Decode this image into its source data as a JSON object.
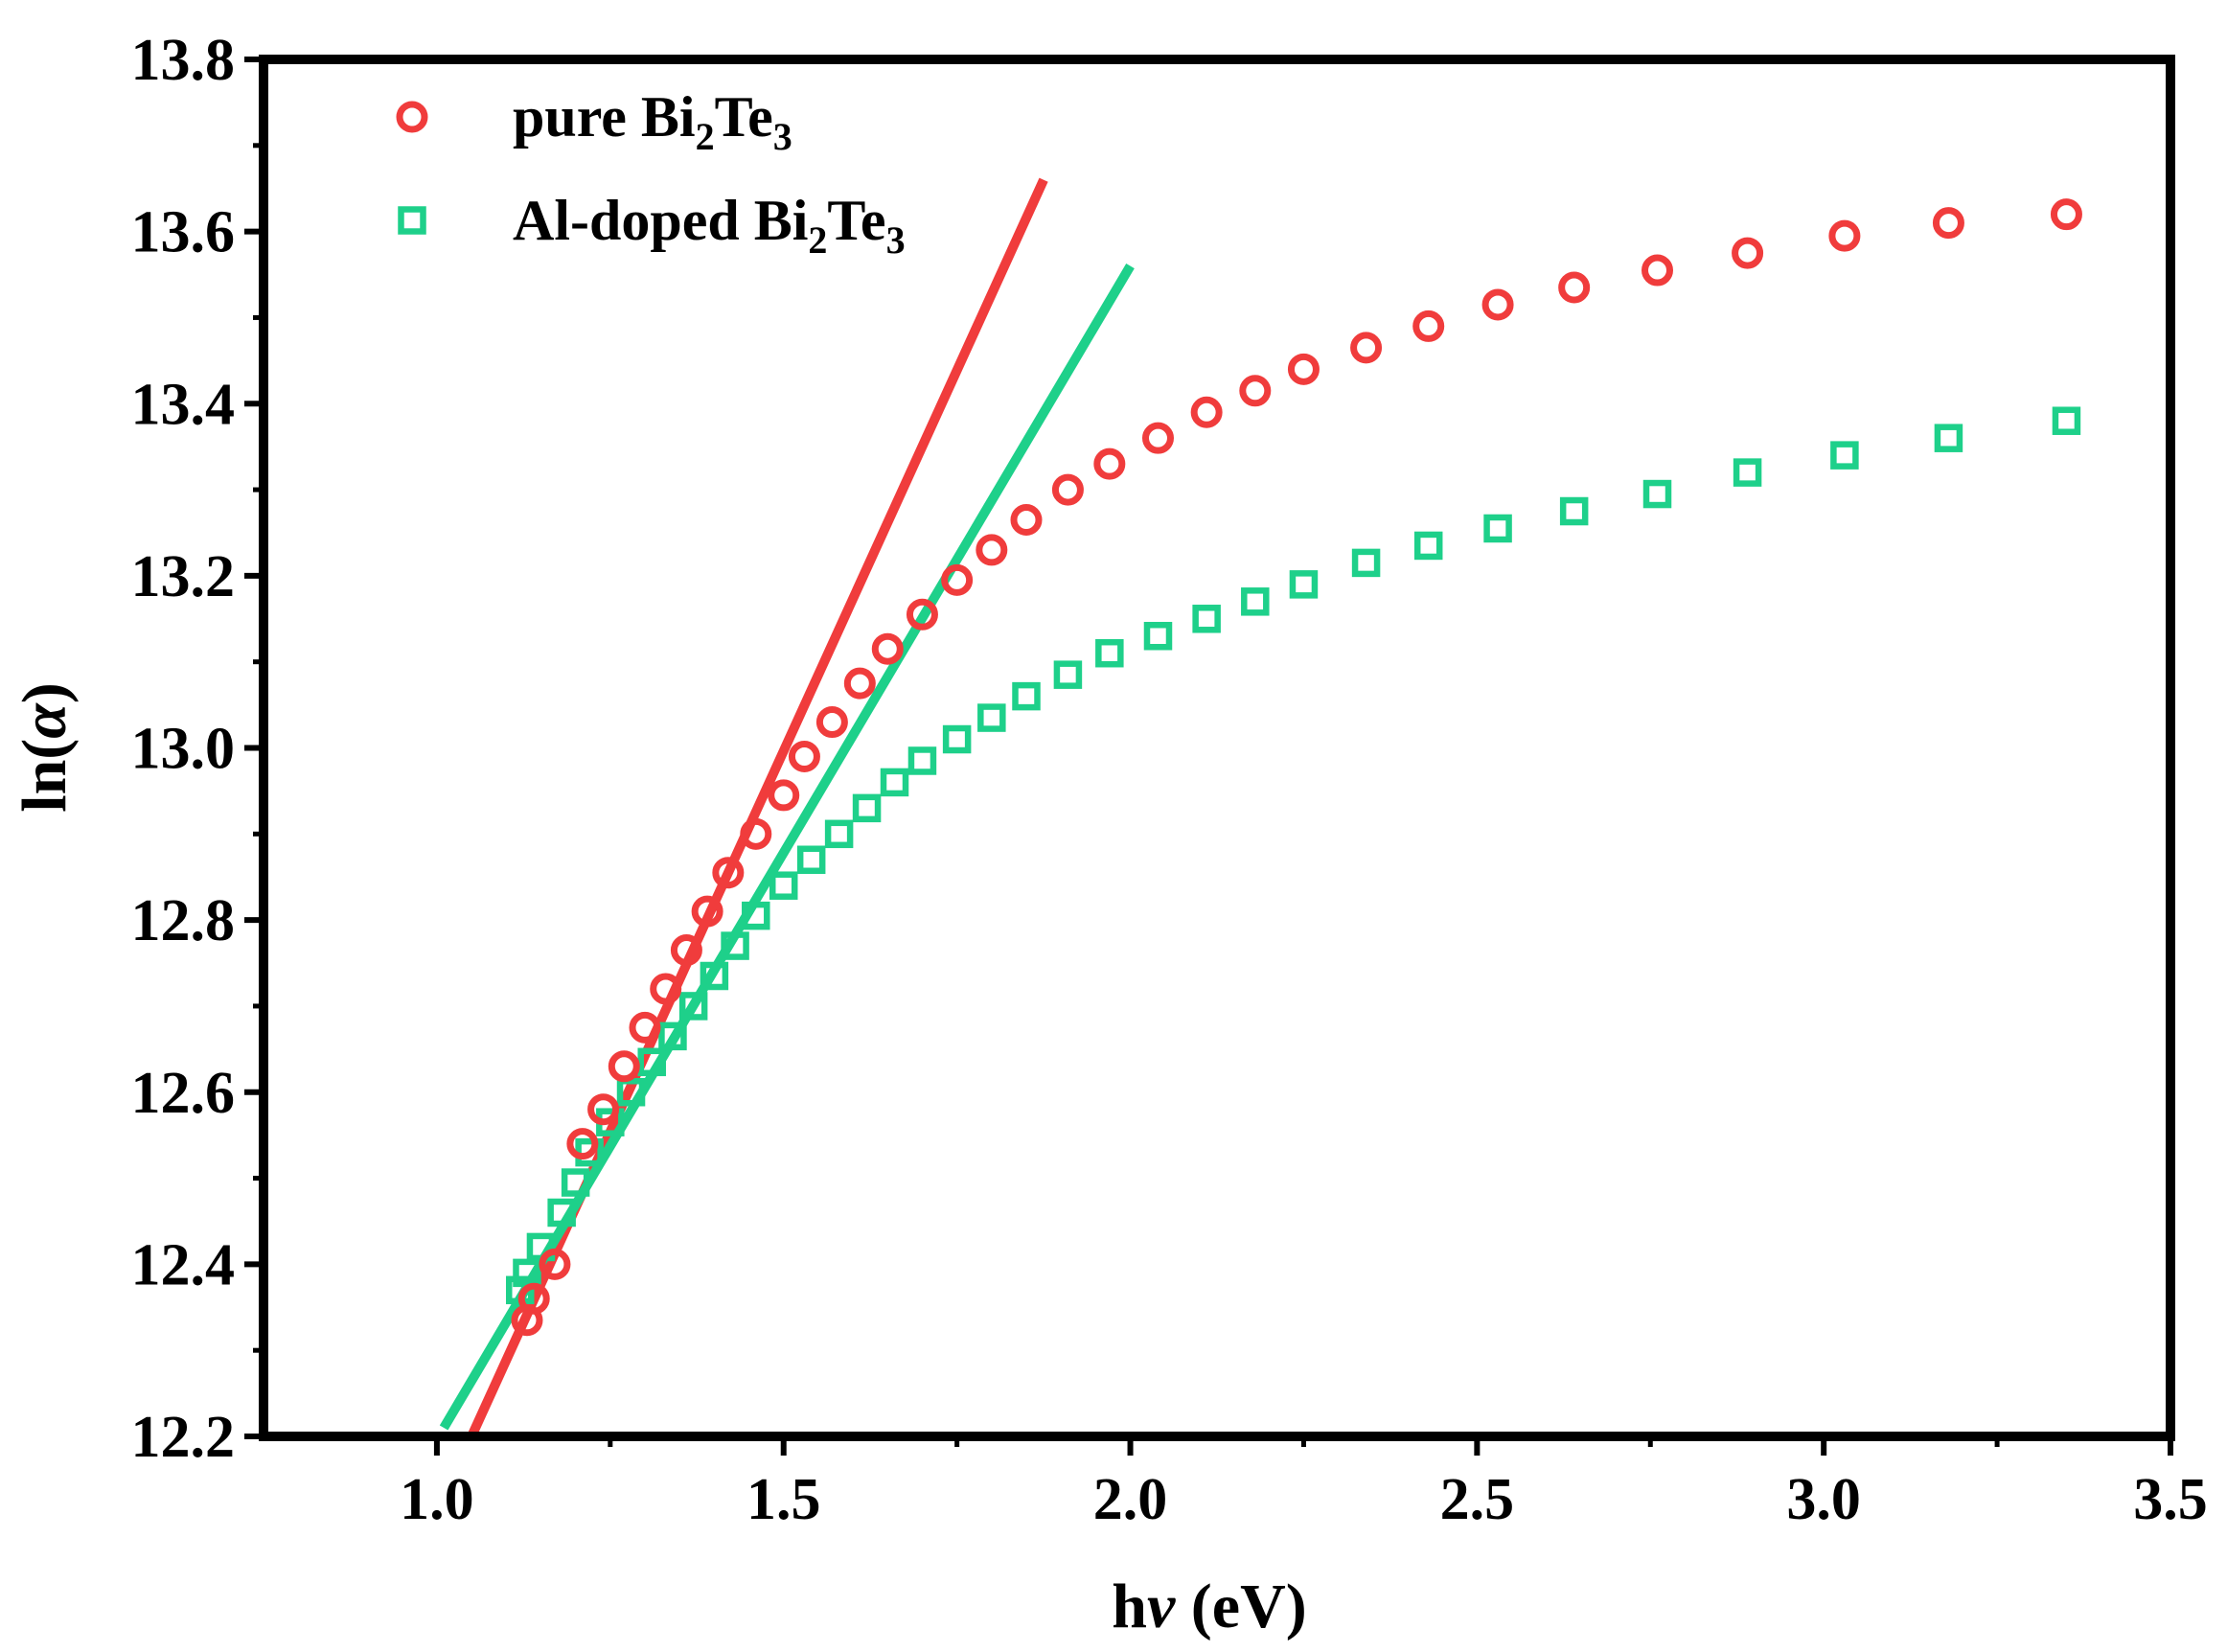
{
  "chart_data": {
    "type": "scatter",
    "title": "",
    "xlabel_parts": [
      "h",
      "ν",
      " (eV)"
    ],
    "ylabel_parts": [
      "ln(",
      "α",
      ")"
    ],
    "xlim": [
      0.75,
      3.5
    ],
    "ylim": [
      12.2,
      13.8
    ],
    "x_ticks": [
      1.0,
      1.5,
      2.0,
      2.5,
      3.0,
      3.5
    ],
    "x_tick_labels": [
      "1.0",
      "1.5",
      "2.0",
      "2.5",
      "3.0",
      "3.5"
    ],
    "y_ticks": [
      12.2,
      12.4,
      12.6,
      12.8,
      13.0,
      13.2,
      13.4,
      13.6,
      13.8
    ],
    "y_tick_labels": [
      "12.2",
      "12.4",
      "12.6",
      "12.8",
      "13.0",
      "13.2",
      "13.4",
      "13.6",
      "13.8"
    ],
    "legend_position": "top-left",
    "series": [
      {
        "name": "pure Bi2Te3",
        "legend_parts": [
          "pure Bi",
          "2",
          "Te",
          "3"
        ],
        "marker": "circle",
        "color": "#f03c3c",
        "x": [
          1.13,
          1.14,
          1.17,
          1.21,
          1.24,
          1.27,
          1.3,
          1.33,
          1.36,
          1.39,
          1.42,
          1.46,
          1.5,
          1.53,
          1.57,
          1.61,
          1.65,
          1.7,
          1.75,
          1.8,
          1.85,
          1.91,
          1.97,
          2.04,
          2.11,
          2.18,
          2.25,
          2.34,
          2.43,
          2.53,
          2.64,
          2.76,
          2.89,
          3.03,
          3.18,
          3.35
        ],
        "y": [
          12.335,
          12.36,
          12.4,
          12.54,
          12.58,
          12.63,
          12.675,
          12.72,
          12.765,
          12.81,
          12.855,
          12.9,
          12.945,
          12.99,
          13.03,
          13.075,
          13.115,
          13.155,
          13.195,
          13.23,
          13.265,
          13.3,
          13.33,
          13.36,
          13.39,
          13.415,
          13.44,
          13.465,
          13.49,
          13.515,
          13.535,
          13.555,
          13.575,
          13.595,
          13.61,
          13.62
        ]
      },
      {
        "name": "Al-doped Bi2Te3",
        "legend_parts": [
          "Al-doped Bi",
          "2",
          "Te",
          "3"
        ],
        "marker": "square",
        "color": "#1ed08a",
        "x": [
          1.12,
          1.13,
          1.15,
          1.18,
          1.2,
          1.22,
          1.25,
          1.28,
          1.31,
          1.34,
          1.37,
          1.4,
          1.43,
          1.46,
          1.5,
          1.54,
          1.58,
          1.62,
          1.66,
          1.7,
          1.75,
          1.8,
          1.85,
          1.91,
          1.97,
          2.04,
          2.11,
          2.18,
          2.25,
          2.34,
          2.43,
          2.53,
          2.64,
          2.76,
          2.89,
          3.03,
          3.18,
          3.35
        ],
        "y": [
          12.37,
          12.39,
          12.42,
          12.46,
          12.495,
          12.53,
          12.565,
          12.6,
          12.635,
          12.665,
          12.7,
          12.735,
          12.77,
          12.805,
          12.84,
          12.87,
          12.9,
          12.93,
          12.96,
          12.985,
          13.01,
          13.035,
          13.06,
          13.085,
          13.11,
          13.13,
          13.15,
          13.17,
          13.19,
          13.215,
          13.235,
          13.255,
          13.275,
          13.295,
          13.32,
          13.34,
          13.36,
          13.38
        ]
      }
    ],
    "fit_lines": [
      {
        "name": "pure Bi2Te3 fit",
        "color": "#f03c3c",
        "x": [
          1.05,
          1.875
        ],
        "y": [
          12.2,
          13.66
        ]
      },
      {
        "name": "Al-doped Bi2Te3 fit",
        "color": "#1ed08a",
        "x": [
          1.01,
          2.0
        ],
        "y": [
          12.21,
          13.56
        ]
      }
    ]
  }
}
